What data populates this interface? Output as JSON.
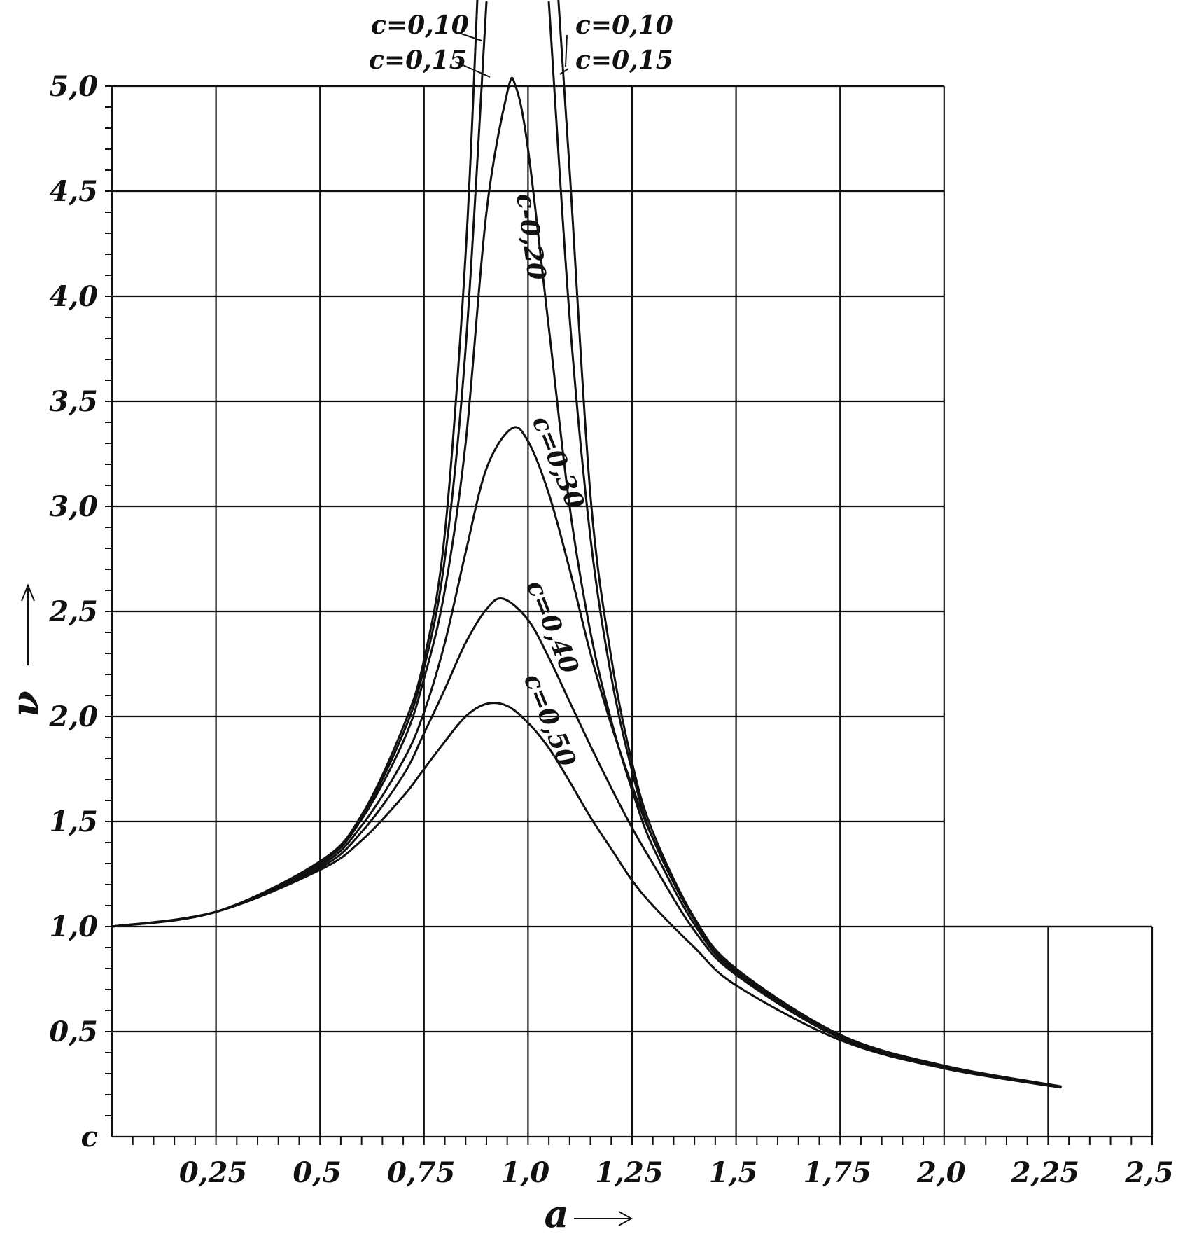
{
  "chart_data": {
    "type": "line",
    "xlabel": "a",
    "ylabel": "ν",
    "xlim": [
      0,
      2.5
    ],
    "ylim": [
      0,
      5.0
    ],
    "grid": true,
    "x_ticks": [
      0.25,
      0.5,
      0.75,
      1.0,
      1.25,
      1.5,
      1.75,
      2.0,
      2.25,
      2.5
    ],
    "x_tick_labels": [
      "0,25",
      "0,5",
      "0,75",
      "1,0",
      "1,25",
      "1,5",
      "1,75",
      "2,0",
      "2,25",
      "2,5"
    ],
    "y_ticks": [
      0,
      0.5,
      1.0,
      1.5,
      2.0,
      2.5,
      3.0,
      3.5,
      4.0,
      4.5,
      5.0
    ],
    "y_tick_labels": [
      "c",
      "0,5",
      "1,0",
      "1,5",
      "2,0",
      "2,5",
      "3,0",
      "3,5",
      "4,0",
      "4,5",
      "5,0"
    ],
    "series": [
      {
        "name": "c=0,10",
        "x": [
          0.0,
          0.25,
          0.5,
          0.6,
          0.7,
          0.75,
          0.8,
          0.85,
          0.88,
          1.07,
          1.1,
          1.15,
          1.2,
          1.25,
          1.3,
          1.4,
          1.5,
          1.75,
          2.0,
          2.28
        ],
        "y": [
          1.0,
          1.07,
          1.31,
          1.53,
          1.95,
          2.27,
          2.87,
          4.2,
          5.5,
          5.5,
          4.6,
          3.05,
          2.28,
          1.78,
          1.45,
          1.04,
          0.8,
          0.485,
          0.338,
          0.24
        ]
      },
      {
        "name": "c=0,15",
        "x": [
          0.0,
          0.25,
          0.5,
          0.6,
          0.7,
          0.75,
          0.8,
          0.85,
          0.9,
          1.05,
          1.1,
          1.15,
          1.2,
          1.25,
          1.3,
          1.4,
          1.5,
          1.75,
          2.0,
          2.28
        ],
        "y": [
          1.0,
          1.07,
          1.31,
          1.52,
          1.92,
          2.23,
          2.75,
          3.75,
          5.4,
          5.4,
          3.9,
          2.85,
          2.19,
          1.74,
          1.42,
          1.03,
          0.79,
          0.48,
          0.335,
          0.238
        ]
      },
      {
        "name": "c=0,20",
        "x": [
          0.0,
          0.25,
          0.5,
          0.6,
          0.7,
          0.75,
          0.8,
          0.85,
          0.9,
          0.95,
          0.97,
          1.0,
          1.05,
          1.1,
          1.15,
          1.2,
          1.25,
          1.3,
          1.4,
          1.5,
          1.75,
          2.0,
          2.28
        ],
        "y": [
          1.0,
          1.07,
          1.3,
          1.51,
          1.88,
          2.18,
          2.6,
          3.3,
          4.4,
          4.97,
          5.0,
          4.7,
          3.85,
          3.0,
          2.4,
          1.98,
          1.65,
          1.38,
          1.01,
          0.78,
          0.475,
          0.332,
          0.236
        ]
      },
      {
        "name": "c=0,30",
        "x": [
          0.0,
          0.25,
          0.5,
          0.6,
          0.7,
          0.75,
          0.8,
          0.85,
          0.9,
          0.96,
          1.0,
          1.05,
          1.1,
          1.15,
          1.2,
          1.25,
          1.3,
          1.4,
          1.5,
          1.75,
          2.0,
          2.28
        ],
        "y": [
          1.0,
          1.07,
          1.29,
          1.48,
          1.79,
          2.02,
          2.35,
          2.78,
          3.18,
          3.37,
          3.31,
          3.06,
          2.7,
          2.3,
          1.96,
          1.67,
          1.42,
          1.04,
          0.79,
          0.48,
          0.335,
          0.238
        ]
      },
      {
        "name": "c=0,40",
        "x": [
          0.0,
          0.25,
          0.5,
          0.6,
          0.7,
          0.75,
          0.8,
          0.85,
          0.9,
          0.94,
          1.0,
          1.05,
          1.1,
          1.15,
          1.2,
          1.25,
          1.3,
          1.4,
          1.5,
          1.75,
          2.0,
          2.28
        ],
        "y": [
          1.0,
          1.07,
          1.28,
          1.45,
          1.72,
          1.92,
          2.13,
          2.35,
          2.51,
          2.56,
          2.46,
          2.28,
          2.07,
          1.86,
          1.66,
          1.47,
          1.3,
          0.98,
          0.77,
          0.47,
          0.33,
          0.236
        ]
      },
      {
        "name": "c=0,50",
        "x": [
          0.0,
          0.25,
          0.5,
          0.6,
          0.7,
          0.75,
          0.8,
          0.85,
          0.9,
          0.95,
          1.0,
          1.05,
          1.1,
          1.15,
          1.2,
          1.25,
          1.3,
          1.4,
          1.5,
          1.75,
          2.0,
          2.28
        ],
        "y": [
          1.0,
          1.07,
          1.27,
          1.41,
          1.62,
          1.75,
          1.88,
          2.0,
          2.06,
          2.05,
          1.97,
          1.85,
          1.69,
          1.52,
          1.37,
          1.22,
          1.1,
          0.9,
          0.72,
          0.46,
          0.325,
          0.234
        ]
      }
    ],
    "annotations": [
      "c=0,10",
      "c=0,15",
      "c-0,20",
      "c=0,30",
      "c=0,40",
      "c=0,50",
      "c=0,10",
      "c=0,15"
    ]
  }
}
